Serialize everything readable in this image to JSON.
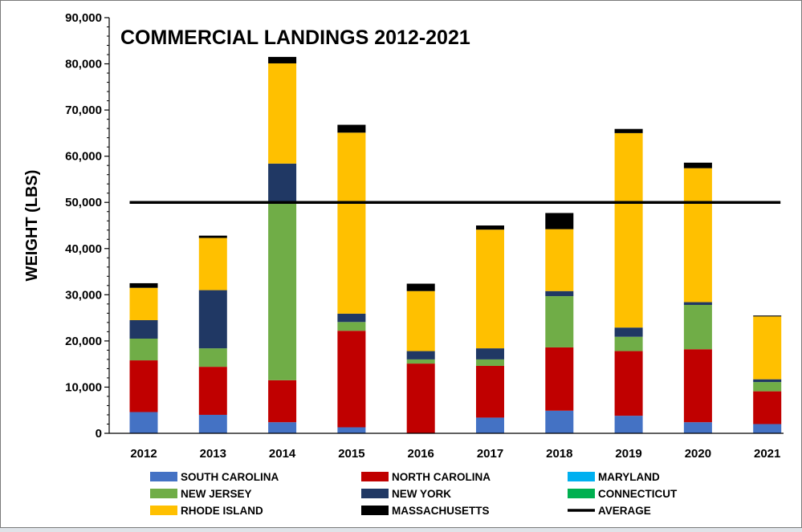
{
  "chart_data": {
    "type": "bar",
    "stacked": true,
    "title": "COMMERCIAL LANDINGS 2012-2021",
    "xlabel": "",
    "ylabel": "WEIGHT (LBS)",
    "ylim": [
      0,
      90000
    ],
    "yticks": [
      "0",
      "10,000",
      "20,000",
      "30,000",
      "40,000",
      "50,000",
      "60,000",
      "70,000",
      "80,000",
      "90,000"
    ],
    "ytick_values": [
      0,
      10000,
      20000,
      30000,
      40000,
      50000,
      60000,
      70000,
      80000,
      90000
    ],
    "grid": false,
    "legend_position": "bottom",
    "categories": [
      "2012",
      "2013",
      "2014",
      "2015",
      "2016",
      "2017",
      "2018",
      "2019",
      "2020",
      "2021"
    ],
    "series": [
      {
        "name": "SOUTH CAROLINA",
        "color": "#4472C4",
        "values": [
          4600,
          4000,
          2400,
          1300,
          0,
          3400,
          4900,
          3800,
          2400,
          2000
        ]
      },
      {
        "name": "NORTH CAROLINA",
        "color": "#C00000",
        "values": [
          11200,
          10400,
          9100,
          20900,
          15100,
          11200,
          13700,
          14000,
          15800,
          7100
        ]
      },
      {
        "name": "MARYLAND",
        "color": "#00B0F0",
        "values": [
          0,
          0,
          0,
          0,
          0,
          0,
          0,
          0,
          0,
          0
        ]
      },
      {
        "name": "NEW JERSEY",
        "color": "#70AD47",
        "values": [
          4700,
          4000,
          38800,
          1900,
          900,
          1400,
          11100,
          3100,
          9600,
          2000
        ]
      },
      {
        "name": "NEW YORK",
        "color": "#203864",
        "values": [
          4000,
          12600,
          8100,
          1800,
          1800,
          2400,
          1100,
          2000,
          600,
          600
        ]
      },
      {
        "name": "CONNECTICUT",
        "color": "#00B050",
        "values": [
          0,
          0,
          0,
          0,
          0,
          0,
          0,
          0,
          0,
          0
        ]
      },
      {
        "name": "RHODE ISLAND",
        "color": "#FFC000",
        "values": [
          7000,
          11300,
          21700,
          39200,
          13000,
          25700,
          13400,
          42100,
          29000,
          13600
        ]
      },
      {
        "name": "MASSACHUSETTS",
        "color": "#000000",
        "values": [
          1000,
          500,
          1400,
          1700,
          1600,
          900,
          3500,
          900,
          1200,
          200
        ]
      }
    ],
    "average": {
      "name": "AVERAGE",
      "value": 50000,
      "color": "#000000"
    },
    "legend": [
      {
        "name": "SOUTH CAROLINA",
        "color": "#4472C4",
        "kind": "box"
      },
      {
        "name": "NORTH CAROLINA",
        "color": "#C00000",
        "kind": "box"
      },
      {
        "name": "MARYLAND",
        "color": "#00B0F0",
        "kind": "box"
      },
      {
        "name": "NEW JERSEY",
        "color": "#70AD47",
        "kind": "box"
      },
      {
        "name": "NEW YORK",
        "color": "#203864",
        "kind": "box"
      },
      {
        "name": "CONNECTICUT",
        "color": "#00B050",
        "kind": "box"
      },
      {
        "name": "RHODE ISLAND",
        "color": "#FFC000",
        "kind": "box"
      },
      {
        "name": "MASSACHUSETTS",
        "color": "#000000",
        "kind": "box"
      },
      {
        "name": "AVERAGE",
        "color": "#000000",
        "kind": "line"
      }
    ]
  }
}
